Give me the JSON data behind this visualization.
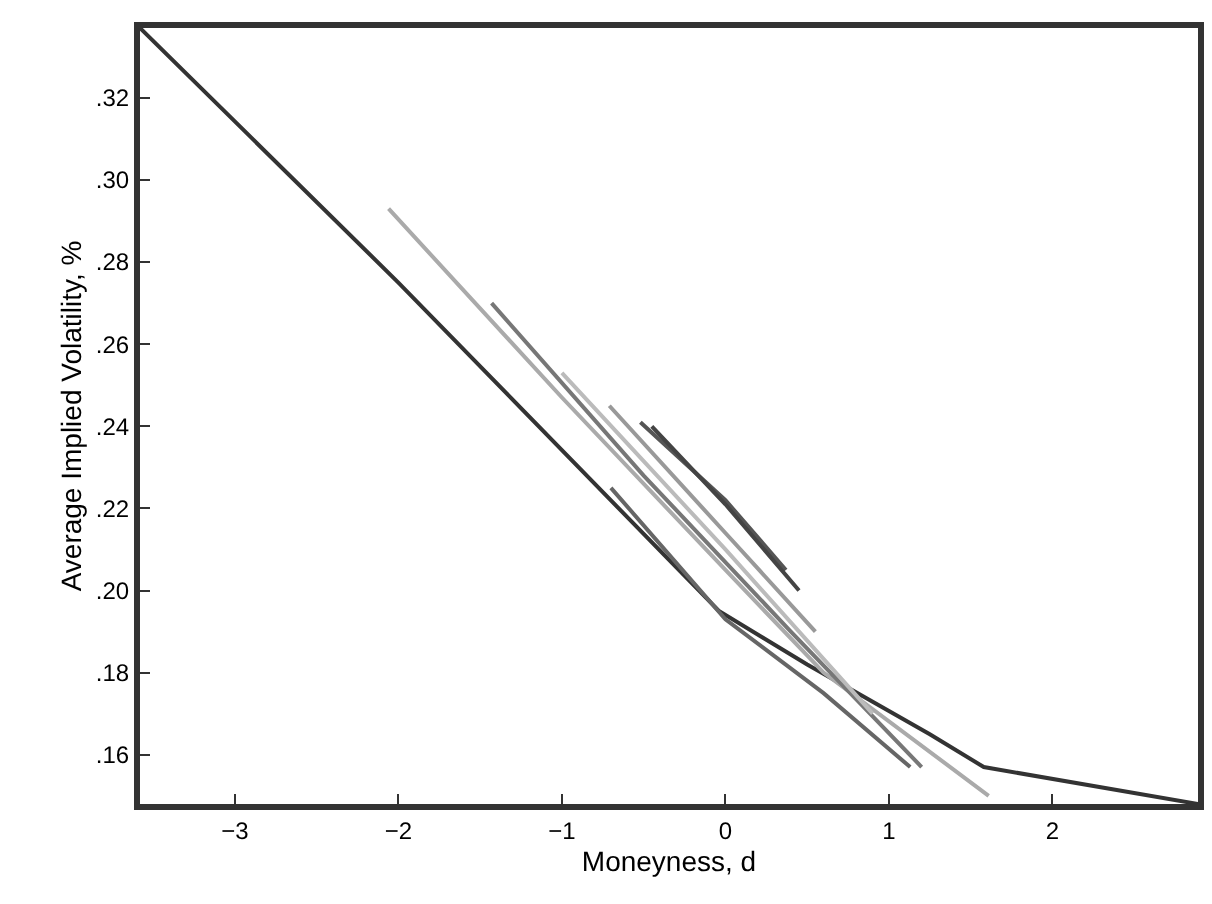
{
  "chart_data": {
    "type": "line",
    "xlabel": "Moneyness, d",
    "ylabel": "Average Implied Volatility, %",
    "xlim": [
      -3.58,
      2.89
    ],
    "ylim": [
      0.148,
      0.337
    ],
    "xticks": [
      {
        "value": -3,
        "label": "−3"
      },
      {
        "value": -2,
        "label": "−2"
      },
      {
        "value": -1,
        "label": "−1"
      },
      0,
      1,
      2
    ],
    "yticks": [
      {
        "value": 0.16,
        "label": ".16"
      },
      {
        "value": 0.18,
        "label": ".18"
      },
      {
        "value": 0.2,
        "label": ".20"
      },
      {
        "value": 0.22,
        "label": ".22"
      },
      {
        "value": 0.24,
        "label": ".24"
      },
      {
        "value": 0.26,
        "label": ".26"
      },
      {
        "value": 0.28,
        "label": ".28"
      },
      {
        "value": 0.3,
        "label": ".30"
      },
      {
        "value": 0.32,
        "label": ".32"
      }
    ],
    "marker": "none",
    "line_style": "solid",
    "series": [
      {
        "color": "#333333",
        "x": [
          -3.58,
          -2,
          -0.04,
          0.5,
          1.25,
          1.58,
          2.89
        ],
        "values": [
          0.337,
          0.275,
          0.195,
          0.182,
          0.165,
          0.157,
          0.148
        ]
      },
      {
        "color": "#aaaaaa",
        "x": [
          -2.06,
          -1,
          0,
          0.6,
          1.61
        ],
        "values": [
          0.293,
          0.247,
          0.205,
          0.18,
          0.15
        ]
      },
      {
        "color": "#777777",
        "x": [
          -1.43,
          -0.5,
          0.4,
          1.2
        ],
        "values": [
          0.27,
          0.228,
          0.19,
          0.157
        ]
      },
      {
        "color": "#bbbbbb",
        "x": [
          -1.0,
          0,
          0.9
        ],
        "values": [
          0.253,
          0.21,
          0.17
        ]
      },
      {
        "color": "#999999",
        "x": [
          -0.71,
          0,
          0.55
        ],
        "values": [
          0.245,
          0.214,
          0.19
        ]
      },
      {
        "color": "#555555",
        "x": [
          -0.52,
          0,
          0.37
        ],
        "values": [
          0.241,
          0.222,
          0.205
        ]
      },
      {
        "color": "#444444",
        "x": [
          -0.45,
          0,
          0.45
        ],
        "values": [
          0.24,
          0.221,
          0.2
        ]
      },
      {
        "color": "#666666",
        "x": [
          -0.7,
          0,
          0.6,
          1.13
        ],
        "values": [
          0.225,
          0.193,
          0.175,
          0.157
        ]
      }
    ]
  }
}
